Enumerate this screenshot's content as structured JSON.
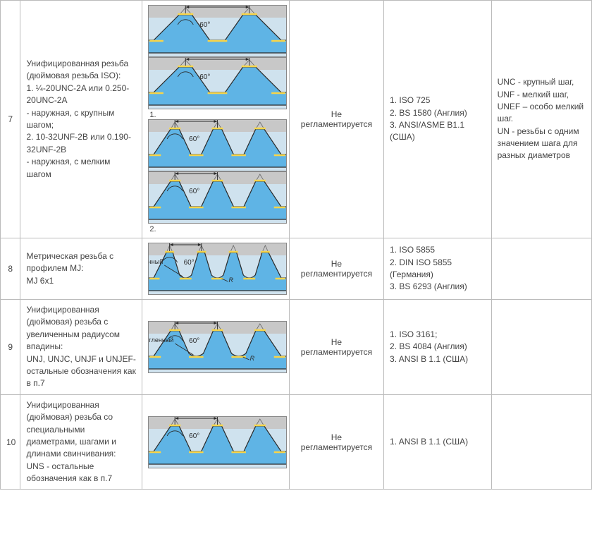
{
  "colors": {
    "sky": "#5fb4e5",
    "lightsky": "#cfe2ee",
    "gray_bg": "#c8c8c8",
    "yellow": "#f7d54a",
    "outline": "#2a2a2a",
    "dim": "#666666"
  },
  "diag_labels": {
    "P": "P",
    "angle": "60°",
    "rounded": "скругленный"
  },
  "rows": [
    {
      "num": "7",
      "desc": "Унифицированная резьба (дюймовая резьба ISO):\n1. ¼-20UNC-2A или 0.250-20UNC-2A\n- наружная, с крупным шагом;\n2. 10-32UNF-2B или 0.190-32UNF-2B\n- наружная, с мелким шагом",
      "reg": "Не регламентируется",
      "std": "1. ISO 725\n2. BS 1580 (Англия)\n3. ANSI/ASME B1.1 (США)",
      "notes": "UNC - крупный шаг,\nUNF - мелкий шаг,\nUNEF – особо мелкий шаг.\nUN - резьбы с одним значением шага для разных диаметров",
      "diagrams": [
        {
          "teeth": 2,
          "label_after": ""
        },
        {
          "teeth": 2,
          "label_after": "1."
        },
        {
          "teeth": 3,
          "label_after": ""
        },
        {
          "teeth": 3,
          "label_after": "2."
        }
      ]
    },
    {
      "num": "8",
      "desc": "Метрическая резьба с профилем MJ:\nMJ 6x1",
      "reg": "Не регламентируется",
      "std": "1. ISO 5855\n2. DIN ISO 5855 (Германия)\n3. BS 6293 (Англия)",
      "notes": "",
      "diagrams": [
        {
          "teeth": 4,
          "rounded": true,
          "label_after": ""
        }
      ]
    },
    {
      "num": "9",
      "desc": "Унифицированная (дюймовая) резьба с увеличенным радиусом впадины:\nUNJ, UNJC, UNJF и UNJEF-остальные обозначения как в п.7",
      "reg": "Не регламентируется",
      "std": "1. ISO 3161;\n2. BS 4084 (Англия)\n3. ANSI B 1.1 (США)",
      "notes": "",
      "diagrams": [
        {
          "teeth": 3,
          "rounded": true,
          "label_after": ""
        }
      ]
    },
    {
      "num": "10",
      "desc": "Унифицированная (дюймовая) резьба со специальными диаметрами, шагами и длинами свинчивания:\nUNS - остальные обозначения как в п.7",
      "reg": "Не регламентируется",
      "std": "1. ANSI B 1.1 (США)",
      "notes": "",
      "diagrams": [
        {
          "teeth": 3,
          "label_after": ""
        }
      ]
    }
  ]
}
